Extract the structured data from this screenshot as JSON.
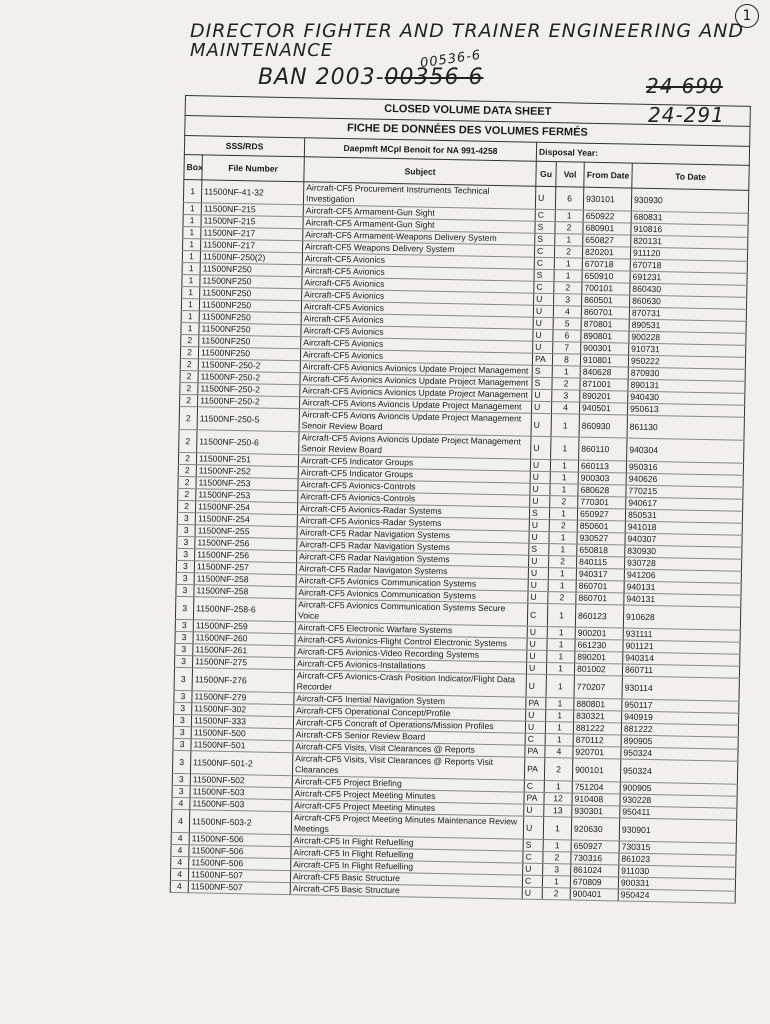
{
  "handwriting": {
    "line1": "DIRECTOR FIGHTER AND TRAINER ENGINEERING AND",
    "line2": "MAINTENANCE",
    "ban_prefix": "BAN 2003-",
    "ban_struck": "00356-6",
    "ban_correction": "00536-6",
    "number_struck": "24-690",
    "number": "24-291",
    "page_circle": "1"
  },
  "sheet": {
    "title_en": "CLOSED VOLUME DATA SHEET",
    "title_fr": "FICHE DE DONNÉES DES VOLUMES FERMÉS",
    "sss_label": "SSS/RDS",
    "officer": "Daepmft MCpl Benoit for NA 991-4258",
    "disposal_label": "Disposal Year:",
    "columns": [
      "Box",
      "File Number",
      "Subject",
      "Gu",
      "Vol",
      "From Date",
      "To Date"
    ],
    "rows": [
      [
        "1",
        "11500NF-41-32",
        "Aircraft-CF5 Procurement Instruments Technical Investigation",
        "U",
        "6",
        "930101",
        "930930"
      ],
      [
        "1",
        "11500NF-215",
        "Aircraft-CF5 Armament-Gun Sight",
        "C",
        "1",
        "650922",
        "680831"
      ],
      [
        "1",
        "11500NF-215",
        "Aircraft-CF5 Armament-Gun Sight",
        "S",
        "2",
        "680901",
        "910816"
      ],
      [
        "1",
        "11500NF-217",
        "Aircraft-CF5 Armament-Weapons Delivery System",
        "S",
        "1",
        "650827",
        "820131"
      ],
      [
        "1",
        "11500NF-217",
        "Aircraft-CF5 Weapons Delivery System",
        "C",
        "2",
        "820201",
        "911120"
      ],
      [
        "1",
        "11500NF-250(2)",
        "Aircraft-CF5 Avionics",
        "C",
        "1",
        "670718",
        "670718"
      ],
      [
        "1",
        "11500NF250",
        "Aircraft-CF5 Avionics",
        "S",
        "1",
        "650910",
        "691231"
      ],
      [
        "1",
        "11500NF250",
        "Aircraft-CF5 Avionics",
        "C",
        "2",
        "700101",
        "860430"
      ],
      [
        "1",
        "11500NF250",
        "Aircraft-CF5 Avionics",
        "U",
        "3",
        "860501",
        "860630"
      ],
      [
        "1",
        "11500NF250",
        "Aircraft-CF5 Avionics",
        "U",
        "4",
        "860701",
        "870731"
      ],
      [
        "1",
        "11500NF250",
        "Aircraft-CF5 Avionics",
        "U",
        "5",
        "870801",
        "890531"
      ],
      [
        "1",
        "11500NF250",
        "Aircraft-CF5 Avionics",
        "U",
        "6",
        "890801",
        "900228"
      ],
      [
        "2",
        "11500NF250",
        "Aircraft-CF5 Avionics",
        "U",
        "7",
        "900301",
        "910731"
      ],
      [
        "2",
        "11500NF250",
        "Aircraft-CF5 Avionics",
        "PA",
        "8",
        "910801",
        "950222"
      ],
      [
        "2",
        "11500NF-250-2",
        "Aircraft-CF5 Avionics Avionics Update Project Management",
        "S",
        "1",
        "840628",
        "870930"
      ],
      [
        "2",
        "11500NF-250-2",
        "Aircraft-CF5 Avionics Avionics Update Project Management",
        "S",
        "2",
        "871001",
        "890131"
      ],
      [
        "2",
        "11500NF-250-2",
        "Aircraft-CF5 Avionics Avionics Update Project Management",
        "U",
        "3",
        "890201",
        "940430"
      ],
      [
        "2",
        "11500NF-250-2",
        "Aircraft-CF5 Avions Avioncis Update Project Management",
        "U",
        "4",
        "940501",
        "950613"
      ],
      [
        "2",
        "11500NF-250-5",
        "Aircraft-CF5 Avions Avioncis Update Project Management Senoir Review Board",
        "U",
        "1",
        "860930",
        "861130"
      ],
      [
        "2",
        "11500NF-250-6",
        "Aircraft-CF5 Avions Avioncis Update Project Management Senoir Review Board",
        "U",
        "1",
        "860110",
        "940304"
      ],
      [
        "2",
        "11500NF-251",
        "Aircraft-CF5 Indicator Groups",
        "U",
        "1",
        "660113",
        "950316"
      ],
      [
        "2",
        "11500NF-252",
        "Aircraft-CF5 Indicator Groups",
        "U",
        "1",
        "900303",
        "940626"
      ],
      [
        "2",
        "11500NF-253",
        "Aircraft-CF5 Avionics-Controls",
        "U",
        "1",
        "680628",
        "770215"
      ],
      [
        "2",
        "11500NF-253",
        "Aircraft-CF5 Avionics-Controls",
        "U",
        "2",
        "770301",
        "940617"
      ],
      [
        "2",
        "11500NF-254",
        "Aircraft-CF5 Avionics-Radar Systems",
        "S",
        "1",
        "650927",
        "850531"
      ],
      [
        "3",
        "11500NF-254",
        "Aircraft-CF5 Avionics-Radar Systems",
        "U",
        "2",
        "850601",
        "941018"
      ],
      [
        "3",
        "11500NF-255",
        "Aircraft-CF5 Radar Navigation Systems",
        "U",
        "1",
        "930527",
        "940307"
      ],
      [
        "3",
        "11500NF-256",
        "Aircraft-CF5 Radar Navigation Systems",
        "S",
        "1",
        "650818",
        "830930"
      ],
      [
        "3",
        "11500NF-256",
        "Aircraft-CF5 Radar Navigation Systems",
        "U",
        "2",
        "840115",
        "930728"
      ],
      [
        "3",
        "11500NF-257",
        "Aircraft-CF5 Radar Navigaton Systems",
        "U",
        "1",
        "940317",
        "941206"
      ],
      [
        "3",
        "11500NF-258",
        "Aircraft-CF5 Avionics Communication Systems",
        "U",
        "1",
        "860701",
        "940131"
      ],
      [
        "3",
        "11500NF-258",
        "Aircraft-CF5 Avionics Communication Systems",
        "U",
        "2",
        "860701",
        "940131"
      ],
      [
        "3",
        "11500NF-258-6",
        "Aircraft-CF5 Avionics Communication Systems Secure Voice",
        "C",
        "1",
        "860123",
        "910628"
      ],
      [
        "3",
        "11500NF-259",
        "Aircraft-CF5 Electronic Warfare Systems",
        "U",
        "1",
        "900201",
        "931111"
      ],
      [
        "3",
        "11500NF-260",
        "Aircraft-CF5 Avionics-Flight Control Electronic Systems",
        "U",
        "1",
        "661230",
        "901121"
      ],
      [
        "3",
        "11500NF-261",
        "Aircraft-CF5 Avionics-Video Recording Systems",
        "U",
        "1",
        "890201",
        "940314"
      ],
      [
        "3",
        "11500NF-275",
        "Aircraft-CF5 Avionics-Installations",
        "U",
        "1",
        "801002",
        "860711"
      ],
      [
        "3",
        "11500NF-276",
        "Aircraft-CF5 Avionics-Crash Position Indicator/Flight Data Recorder",
        "U",
        "1",
        "770207",
        "930114"
      ],
      [
        "3",
        "11500NF-279",
        "Aircraft-CF5 Inertial Navigation System",
        "PA",
        "1",
        "880801",
        "950117"
      ],
      [
        "3",
        "11500NF-302",
        "Aircraft-CF5 Operational Concept/Profile",
        "U",
        "1",
        "830321",
        "940919"
      ],
      [
        "3",
        "11500NF-333",
        "Aircraft-CF5 Concraft of Operations/Mission Profiles",
        "U",
        "1",
        "881222",
        "881222"
      ],
      [
        "3",
        "11500NF-500",
        "Aircraft-CF5 Senior Review Board",
        "C",
        "1",
        "870112",
        "890905"
      ],
      [
        "3",
        "11500NF-501",
        "Aircraft-CF5 Visits, Visit Clearances @ Reports",
        "PA",
        "4",
        "920701",
        "950324"
      ],
      [
        "3",
        "11500NF-501-2",
        "Aircraft-CF5 Visits, Visit Clearances @ Reports Visit Clearances",
        "PA",
        "2",
        "900101",
        "950324"
      ],
      [
        "3",
        "11500NF-502",
        "Aircraft-CF5 Project Briefing",
        "C",
        "1",
        "751204",
        "900905"
      ],
      [
        "3",
        "11500NF-503",
        "Aircraft-CF5 Project Meeting Minutes",
        "PA",
        "12",
        "910408",
        "930228"
      ],
      [
        "4",
        "11500NF-503",
        "Aircraft-CF5 Project Meeting Minutes",
        "U",
        "13",
        "930301",
        "950411"
      ],
      [
        "4",
        "11500NF-503-2",
        "Aircraft-CF5 Project Meeting Minutes Maintenance Review Meetings",
        "U",
        "1",
        "920630",
        "930901"
      ],
      [
        "4",
        "11500NF-506",
        "Aircraft-CF5 In Flight Refuelling",
        "S",
        "1",
        "650927",
        "730315"
      ],
      [
        "4",
        "11500NF-506",
        "Aircraft-CF5 In Flight Refuelling",
        "C",
        "2",
        "730316",
        "861023"
      ],
      [
        "4",
        "11500NF-506",
        "Aircraft-CF5 In Flight Refuelling",
        "U",
        "3",
        "861024",
        "911030"
      ],
      [
        "4",
        "11500NF-507",
        "Aircraft-CF5 Basic Structure",
        "C",
        "1",
        "670809",
        "900331"
      ],
      [
        "4",
        "11500NF-507",
        "Aircraft-CF5 Basic Structure",
        "U",
        "2",
        "900401",
        "950424"
      ]
    ]
  }
}
